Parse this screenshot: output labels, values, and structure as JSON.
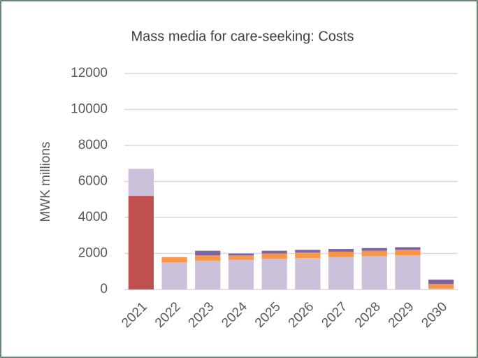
{
  "chart_data": {
    "type": "stacked_bar",
    "title": "Mass media for care-seeking: Costs",
    "y_label": "MWK millions",
    "categories": [
      "2021",
      "2022",
      "2023",
      "2024",
      "2025",
      "2026",
      "2027",
      "2028",
      "2029",
      "2030"
    ],
    "series": [
      {
        "color": "#c0504d",
        "values": [
          5200,
          0,
          0,
          0,
          0,
          0,
          0,
          0,
          0,
          0
        ]
      },
      {
        "color": "#ccc1da",
        "values": [
          1500,
          1500,
          1600,
          1650,
          1700,
          1750,
          1800,
          1850,
          1900,
          50
        ]
      },
      {
        "color": "#f79646",
        "values": [
          0,
          300,
          300,
          250,
          300,
          300,
          300,
          300,
          300,
          250
        ]
      },
      {
        "color": "#8064a2",
        "values": [
          0,
          0,
          250,
          100,
          150,
          150,
          150,
          150,
          150,
          250
        ]
      }
    ],
    "ylim": [
      0,
      12000
    ],
    "yticks": [
      0,
      2000,
      4000,
      6000,
      8000,
      10000,
      12000
    ],
    "grid": true
  }
}
